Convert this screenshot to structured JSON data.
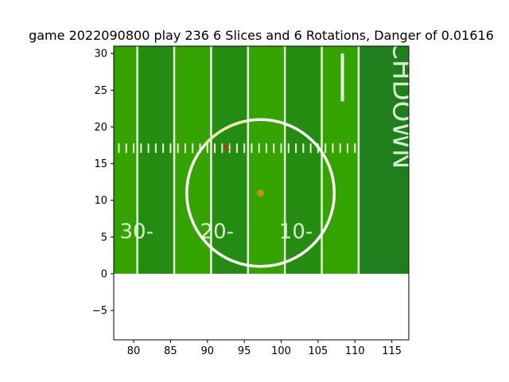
{
  "chart_data": {
    "type": "scatter",
    "title": "game 2022090800 play 236 6 Slices and 6 Rotations, Danger of 0.01616",
    "xlabel": "",
    "ylabel": "",
    "xlim": [
      77.3,
      117.3
    ],
    "ylim": [
      -9.0,
      31.0
    ],
    "xticks": [
      80,
      85,
      90,
      95,
      100,
      105,
      110,
      115
    ],
    "yticks": [
      -5,
      0,
      5,
      10,
      15,
      20,
      25,
      30
    ],
    "grid": false,
    "background": {
      "kind": "football-field-image",
      "extent_x": [
        77.3,
        117.3
      ],
      "extent_y": [
        0,
        31.0
      ],
      "stripe_boundaries_x": [
        77.3,
        80.5,
        85.5,
        90.5,
        95.5,
        100.5,
        105.5,
        110.5,
        117.3
      ],
      "yard_line_x": [
        80.5,
        85.5,
        90.5,
        95.5,
        100.5,
        105.5,
        110.5
      ],
      "hash_y": 17.1,
      "goal_post_x": 108.3,
      "goal_post_y": [
        23.5,
        30.0
      ],
      "yard_numbers": [
        {
          "text": "30-",
          "x": 80.4,
          "y": 5.8
        },
        {
          "text": "20-",
          "x": 91.3,
          "y": 5.8
        },
        {
          "text": "10-",
          "x": 102.0,
          "y": 5.8
        }
      ],
      "endzone_text": "CHDOWN",
      "colors": {
        "stripe_light": "#34a300",
        "stripe_dark": "#248c10",
        "endzone": "#1f7f1c",
        "line": "#e8f4e0",
        "number": "#e9f5e3"
      }
    },
    "danger_circle": {
      "cx": 97.2,
      "cy": 11.0,
      "r": 10.0,
      "color": "#ffffff",
      "arc_highlight_color": "#f2e6b8"
    },
    "series": [
      {
        "marker": "o",
        "color": "#c98a1e",
        "points": [
          [
            97.2,
            11.0
          ]
        ]
      },
      {
        "marker": "x",
        "color": "#e02020",
        "points": [
          [
            92.6,
            17.2
          ]
        ]
      }
    ]
  }
}
